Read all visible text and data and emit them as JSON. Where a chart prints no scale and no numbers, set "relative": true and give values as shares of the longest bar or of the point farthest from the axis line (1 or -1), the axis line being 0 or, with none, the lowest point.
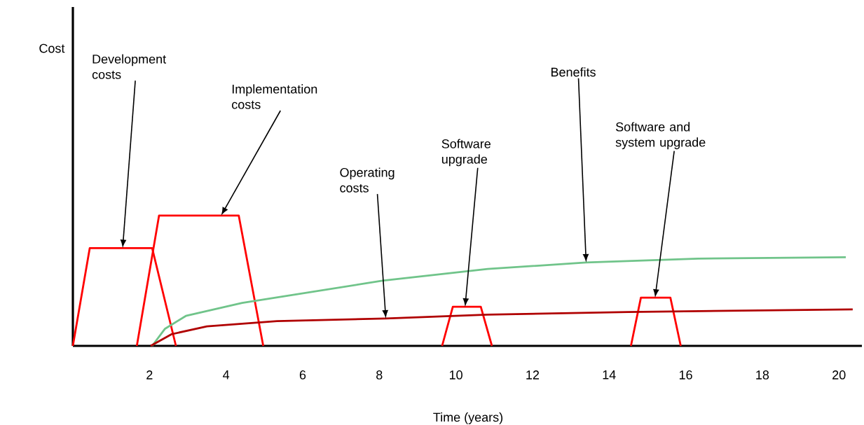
{
  "chart_data": {
    "type": "line",
    "relative": true,
    "xlabel": "Time (years)",
    "xlim": [
      0,
      20.6
    ],
    "xticks": [
      2,
      4,
      6,
      8,
      10,
      12,
      14,
      16,
      18,
      20
    ],
    "tick_labels": "x",
    "marker": "none",
    "line_style": "solid",
    "series": [
      {
        "color": "#ff0000",
        "x": [
          0,
          0.44,
          2.07,
          2.69
        ],
        "values": [
          0,
          0.75,
          0.75,
          0
        ]
      },
      {
        "color": "#ff0000",
        "x": [
          1.67,
          2.25,
          4.33,
          4.97
        ],
        "values": [
          0,
          1,
          1,
          0
        ]
      },
      {
        "color": "#ff0000",
        "x": [
          9.64,
          9.92,
          10.65,
          10.94
        ],
        "values": [
          0,
          0.3,
          0.3,
          0
        ]
      },
      {
        "color": "#ff0000",
        "x": [
          14.57,
          14.83,
          15.6,
          15.87
        ],
        "values": [
          0,
          0.37,
          0.37,
          0
        ]
      },
      {
        "color": "#70c48a",
        "x": [
          2.07,
          2.4,
          2.95,
          4.42,
          8.08,
          10.83,
          13.4,
          16.33,
          20.18
        ],
        "values": [
          0,
          0.13,
          0.23,
          0.33,
          0.5,
          0.59,
          0.64,
          0.67,
          0.68
        ]
      },
      {
        "color": "#b00000",
        "x": [
          2.03,
          2.58,
          3.5,
          5.33,
          8.17,
          10.83,
          14.5,
          20.36
        ],
        "values": [
          0,
          0.09,
          0.15,
          0.19,
          0.21,
          0.24,
          0.26,
          0.28
        ]
      }
    ],
    "annotations": [
      "Development costs",
      "Implementation costs",
      "Operating costs",
      "Software upgrade",
      "Benefits",
      "Software and system upgrade",
      "Cost"
    ]
  }
}
